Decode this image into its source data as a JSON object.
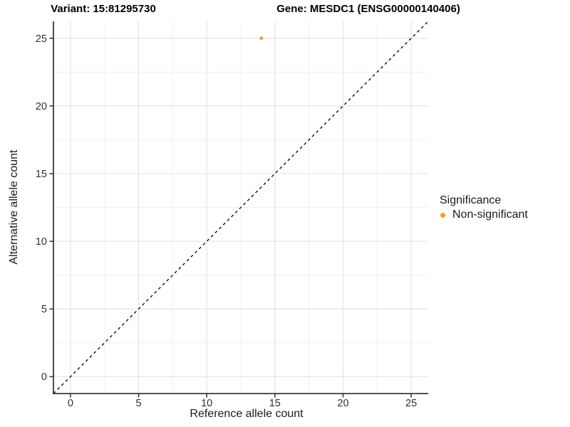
{
  "chart_data": {
    "type": "scatter",
    "title_variant": "Variant: 15:81295730",
    "title_gene": "Gene: MESDC1 (ENSG00000140406)",
    "xlabel": "Reference allele count",
    "ylabel": "Alternative allele count",
    "xlim": [
      -1.25,
      26.25
    ],
    "ylim": [
      -1.25,
      26.25
    ],
    "x_ticks": [
      0,
      5,
      10,
      15,
      20,
      25
    ],
    "y_ticks": [
      0,
      5,
      10,
      15,
      20,
      25
    ],
    "x_minor_ticks": [
      2.5,
      7.5,
      12.5,
      17.5,
      22.5
    ],
    "y_minor_ticks": [
      2.5,
      7.5,
      12.5,
      17.5,
      22.5
    ],
    "grid": true,
    "points": [
      {
        "x": 14,
        "y": 25,
        "significance": "Non-significant",
        "color": "#F99C2B"
      }
    ],
    "identity_line": {
      "slope": 1,
      "intercept": 0,
      "style": "dashed",
      "color": "#000000"
    },
    "legend": {
      "title": "Significance",
      "position": "right",
      "items": [
        {
          "label": "Non-significant",
          "color": "#F99C2B"
        }
      ]
    },
    "colors": {
      "background": "#FFFFFF",
      "grid_major": "#E4E4E4",
      "grid_minor": "#F0F0F0",
      "axis_line": "#3A3A3A",
      "tick_text": "#303030",
      "title_text": "#000000"
    }
  }
}
